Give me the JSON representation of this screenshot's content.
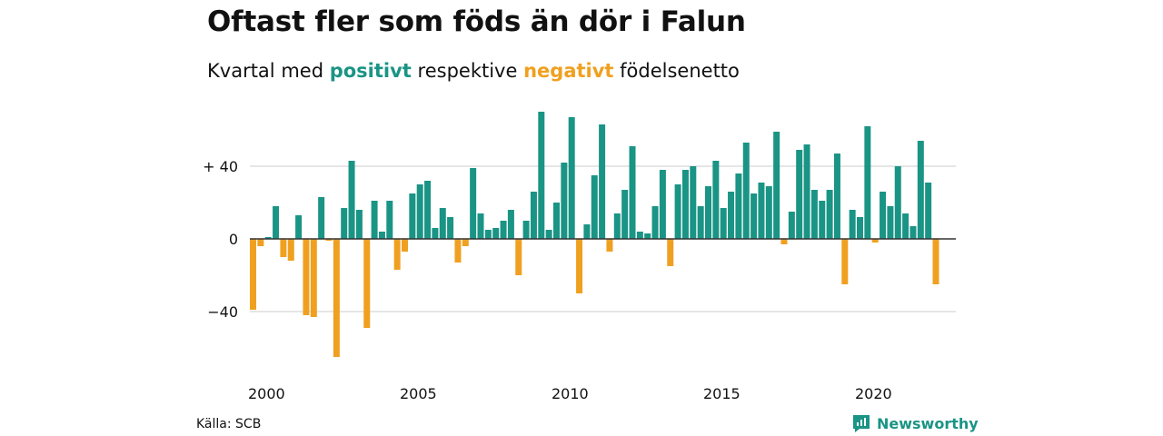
{
  "header": {
    "title": "Oftast fler som föds än dör i Falun",
    "subtitle_prefix": "Kvartal med",
    "subtitle_pos": "positivt",
    "subtitle_mid": "respektive",
    "subtitle_neg": "negativt",
    "subtitle_suffix": "födelsenetto"
  },
  "footer": {
    "source": "Källa: SCB",
    "brand": "Newsworthy",
    "brand_icon": "newsworthy-logo-icon"
  },
  "colors": {
    "positive": "#1a9485",
    "negative": "#f0a020",
    "grid": "#dddddd",
    "zero_line": "#333333"
  },
  "chart_data": {
    "type": "bar",
    "x_start": "2000 Q1",
    "quarters_per_year": 4,
    "values": [
      -39,
      -4,
      1,
      18,
      -10,
      -12,
      13,
      -42,
      -43,
      23,
      -1,
      -65,
      17,
      43,
      16,
      -49,
      21,
      4,
      21,
      -17,
      -7,
      25,
      30,
      32,
      6,
      17,
      12,
      -13,
      -4,
      39,
      14,
      5,
      6,
      10,
      16,
      -20,
      10,
      26,
      70,
      5,
      20,
      42,
      67,
      -30,
      8,
      35,
      63,
      -7,
      14,
      27,
      51,
      4,
      3,
      18,
      38,
      -15,
      30,
      38,
      40,
      18,
      29,
      43,
      17,
      26,
      36,
      53,
      25,
      31,
      29,
      59,
      -3,
      15,
      49,
      52,
      27,
      21,
      27,
      47,
      -25,
      16,
      12,
      62,
      -2,
      26,
      18,
      40,
      14,
      7,
      54,
      31,
      -25
    ],
    "yticks": [
      -40,
      0,
      40
    ],
    "ytick_labels": [
      "−40",
      "0",
      "+ 40"
    ],
    "ylim": [
      -70,
      75
    ],
    "xticks": [
      2000,
      2005,
      2010,
      2015,
      2020
    ],
    "xtick_labels": [
      "2000",
      "2005",
      "2010",
      "2015",
      "2020"
    ],
    "grid": true,
    "legend": "none"
  }
}
